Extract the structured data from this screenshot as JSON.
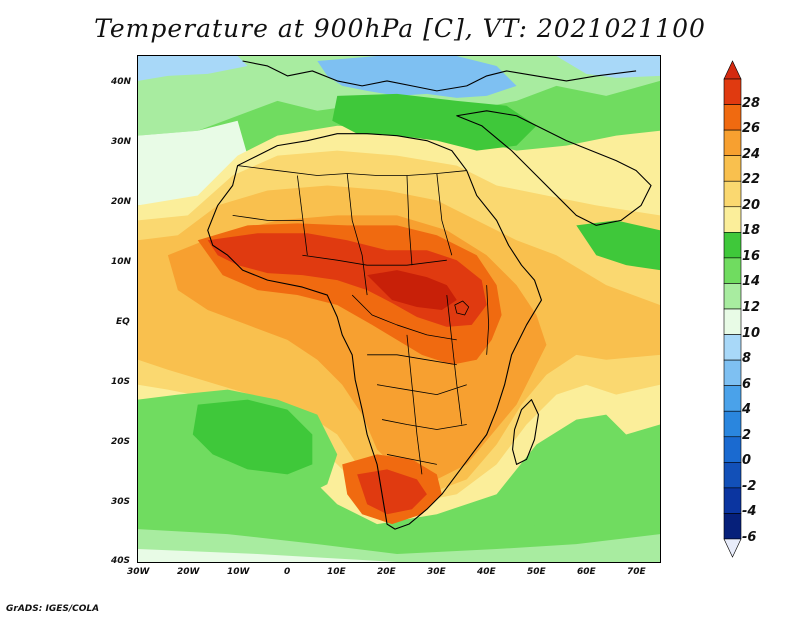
{
  "title": "Temperature at 900hPa [C], VT: 2021021100",
  "credit": "GrADS: IGES/COLA",
  "axes": {
    "lat_labels": [
      "40N",
      "30N",
      "20N",
      "10N",
      "EQ",
      "10S",
      "20S",
      "30S",
      "40S"
    ],
    "lon_labels": [
      "30W",
      "20W",
      "10W",
      "0",
      "10E",
      "20E",
      "30E",
      "40E",
      "50E",
      "60E",
      "70E"
    ]
  },
  "colorbar": {
    "labels": [
      "28",
      "26",
      "24",
      "22",
      "20",
      "18",
      "16",
      "14",
      "12",
      "10",
      "8",
      "6",
      "4",
      "2",
      "0",
      "-2",
      "-4",
      "-6"
    ],
    "levels": [
      28,
      26,
      24,
      22,
      20,
      18,
      16,
      14,
      12,
      10,
      8,
      6,
      4,
      2,
      0,
      -2,
      -4,
      -6
    ],
    "colors": [
      "#e03a10",
      "#f06a10",
      "#f7a030",
      "#f9c04e",
      "#fad870",
      "#fbee9a",
      "#3fc83a",
      "#70dc60",
      "#a8eca0",
      "#e8fbe6",
      "#a8d8f8",
      "#7ec0f2",
      "#4aa2ea",
      "#2a86de",
      "#1a6ad0",
      "#1250b8",
      "#0b35a0",
      "#06207a"
    ],
    "over_color": "#d42a10",
    "under_color": "#e8ecfa"
  },
  "map": {
    "region": "Africa",
    "lon_range": [
      "30W",
      "75E"
    ],
    "lat_range": [
      "40S",
      "45N"
    ],
    "colors": {
      "ocean_cool": "#e8fbe6",
      "ocean_mild": "#a8eca0",
      "green": "#70dc60",
      "green_dark": "#3fc83a",
      "pale": "#fbee9a",
      "yellow": "#fad870",
      "light_orange": "#f9c04e",
      "orange": "#f7a030",
      "dark_orange": "#f06a10",
      "red": "#e03a10",
      "deep_red": "#c82008",
      "blue_light": "#a8d8f8",
      "blue": "#7ec0f2",
      "blue_mid": "#4aa2ea"
    }
  }
}
